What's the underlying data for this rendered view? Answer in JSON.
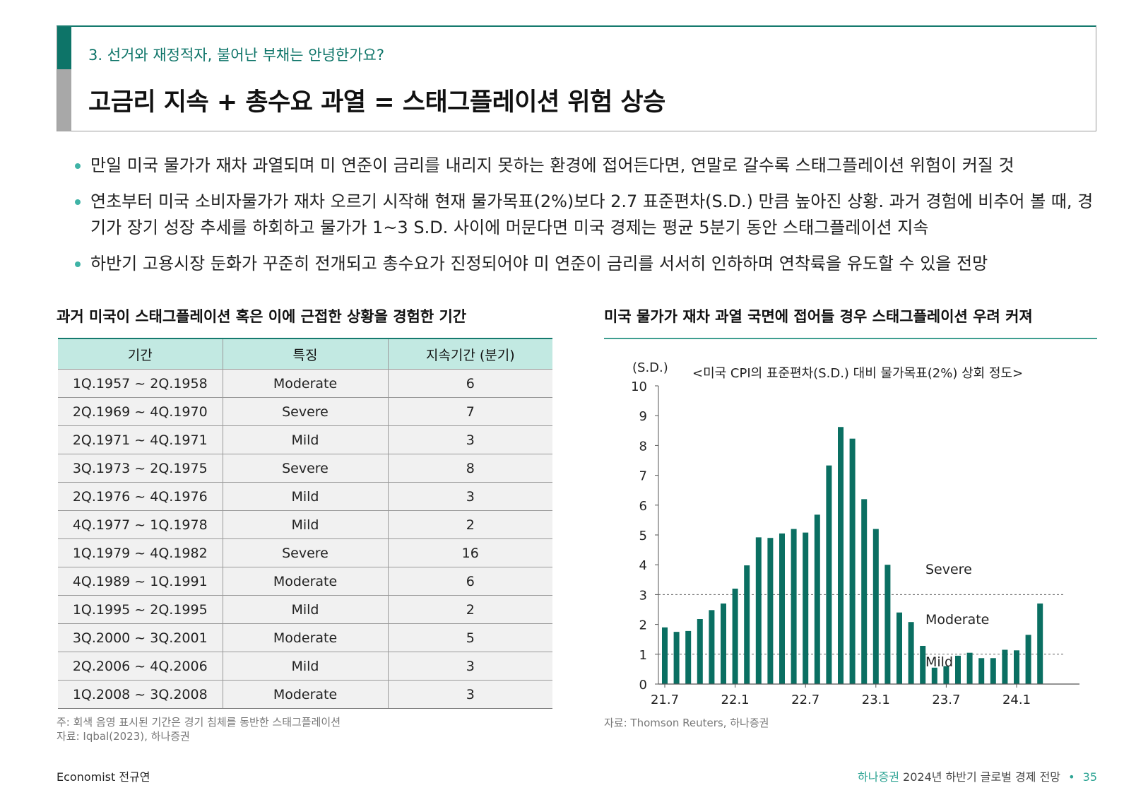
{
  "header": {
    "section_label": "3. 선거와 재정적자, 불어난 부채는 안녕한가요?",
    "title": "고금리 지속 + 총수요 과열 = 스태그플레이션 위험 상승"
  },
  "bullets": [
    "만일 미국 물가가 재차 과열되며 미 연준이 금리를 내리지 못하는 환경에 접어든다면, 연말로 갈수록 스태그플레이션 위험이 커질 것",
    "연초부터 미국 소비자물가가 재차 오르기 시작해 현재 물가목표(2%)보다 2.7 표준편차(S.D.) 만큼 높아진 상황. 과거 경험에 비추어 볼 때, 경기가 장기 성장 추세를 하회하고 물가가 1~3 S.D. 사이에 머문다면 미국 경제는 평균 5분기 동안 스태그플레이션 지속",
    "하반기 고용시장 둔화가 꾸준히 전개되고 총수요가 진정되어야 미 연준이 금리를 서서히 인하하며 연착륙을 유도할 수 있을 전망"
  ],
  "table": {
    "title": "과거 미국이 스태그플레이션 혹은 이에 근접한 상황을 경험한 기간",
    "headers": [
      "기간",
      "특징",
      "지속기간 (분기)"
    ],
    "rows": [
      [
        "1Q.1957 ~ 2Q.1958",
        "Moderate",
        "6"
      ],
      [
        "2Q.1969 ~ 4Q.1970",
        "Severe",
        "7"
      ],
      [
        "2Q.1971 ~ 4Q.1971",
        "Mild",
        "3"
      ],
      [
        "3Q.1973 ~ 2Q.1975",
        "Severe",
        "8"
      ],
      [
        "2Q.1976 ~ 4Q.1976",
        "Mild",
        "3"
      ],
      [
        "4Q.1977 ~ 1Q.1978",
        "Mild",
        "2"
      ],
      [
        "1Q.1979 ~ 4Q.1982",
        "Severe",
        "16"
      ],
      [
        "4Q.1989 ~ 1Q.1991",
        "Moderate",
        "6"
      ],
      [
        "1Q.1995 ~ 2Q.1995",
        "Mild",
        "2"
      ],
      [
        "3Q.2000 ~ 3Q.2001",
        "Moderate",
        "5"
      ],
      [
        "2Q.2006 ~ 4Q.2006",
        "Mild",
        "3"
      ],
      [
        "1Q.2008 ~ 3Q.2008",
        "Moderate",
        "3"
      ]
    ],
    "note": "주: 회색 음영 표시된 기간은 경기 침체를 동반한 스태그플레이션",
    "source": "자료: Iqbal(2023), 하나증권"
  },
  "chart_title": "미국 물가가 재차 과열 국면에 접어들 경우 스태그플레이션 우려 커져",
  "chart_source": "자료: Thomson Reuters, 하나증권",
  "chart_data": {
    "type": "bar",
    "title": "<미국 CPI의 표준편차(S.D.) 대비 물가목표(2%) 상회 정도>",
    "ylabel": "(S.D.)",
    "ylim": [
      0,
      10
    ],
    "yticks": [
      "0",
      "1",
      "2",
      "3",
      "4",
      "5",
      "6",
      "7",
      "8",
      "9",
      "10"
    ],
    "xtick_labels": [
      "21.7",
      "22.1",
      "22.7",
      "23.1",
      "23.7",
      "24.1"
    ],
    "xtick_positions": [
      0,
      6,
      12,
      18,
      24,
      30
    ],
    "values": [
      1.9,
      1.75,
      1.78,
      2.18,
      2.48,
      2.7,
      3.2,
      3.98,
      4.92,
      4.9,
      5.05,
      5.2,
      5.08,
      5.68,
      7.33,
      8.62,
      8.23,
      6.2,
      5.2,
      4.0,
      2.4,
      2.08,
      1.28,
      0.55,
      0.6,
      0.95,
      1.05,
      0.87,
      0.87,
      1.15,
      1.13,
      1.65,
      2.7
    ],
    "color": "#0a6f62",
    "reference_lines": [
      1,
      3
    ],
    "zone_labels": [
      "Severe",
      "Moderate",
      "Mild"
    ]
  },
  "footer": {
    "author": "Economist 전규연",
    "brand": "하나증권",
    "report": "2024년 하반기 글로벌 경제 전망",
    "page": "35"
  }
}
